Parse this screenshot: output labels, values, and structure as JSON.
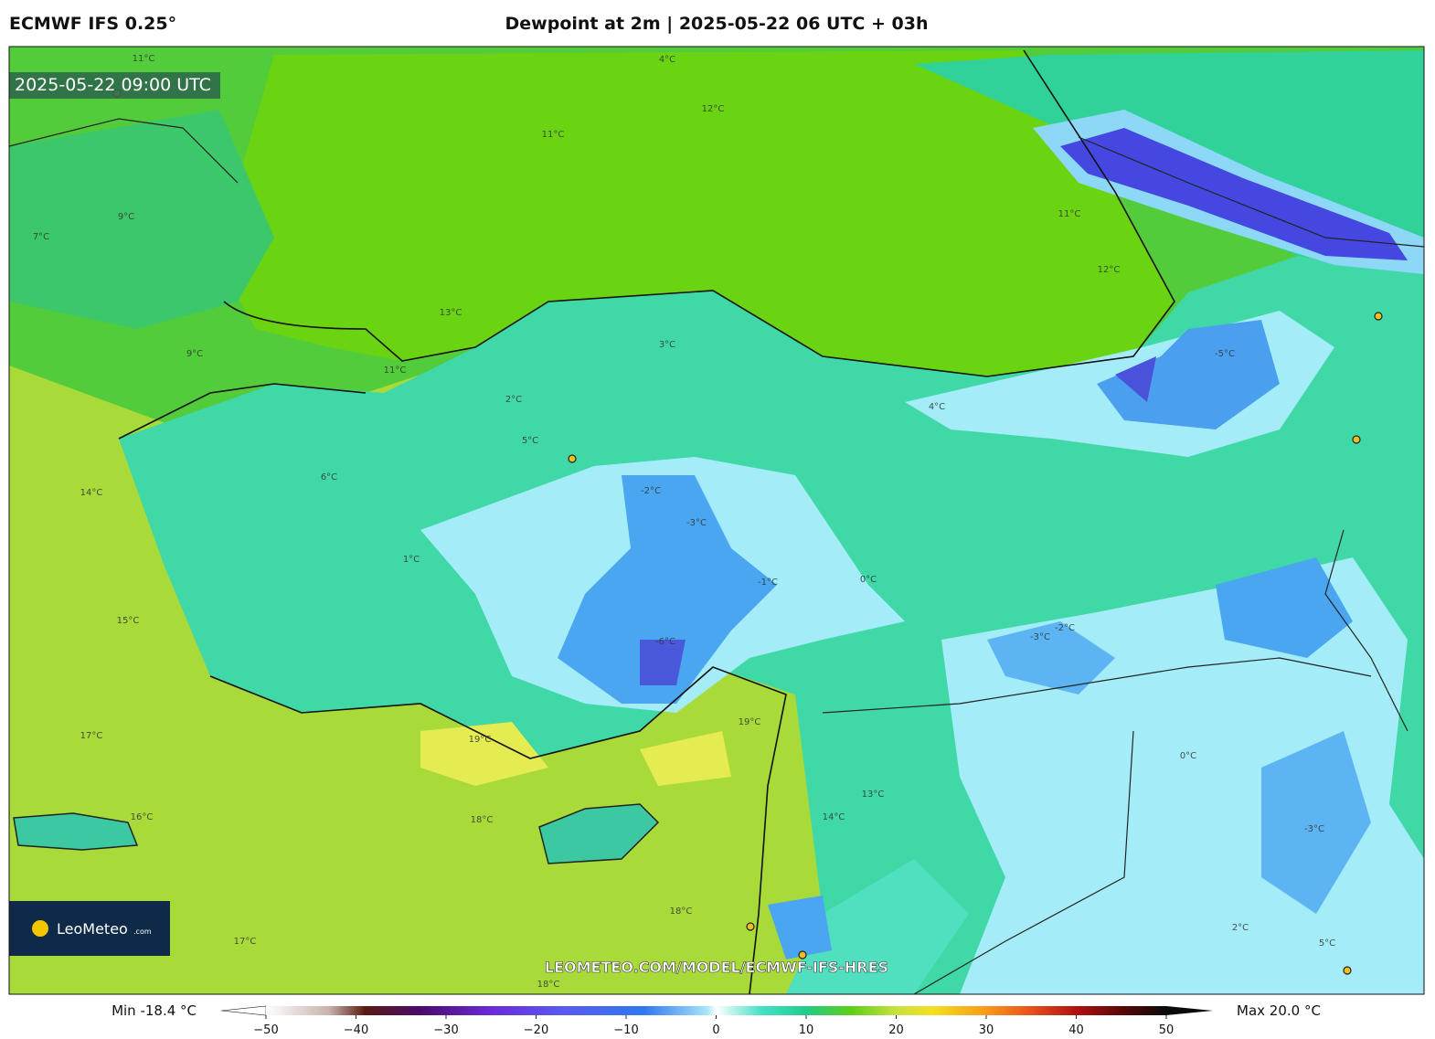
{
  "header": {
    "model": "ECMWF IFS 0.25°",
    "title": "Dewpoint at 2m | 2025-05-22 06 UTC + 03h"
  },
  "map": {
    "valid_time": "2025-05-22 09:00 UTC",
    "watermark": "LEOMETEO.COM/MODEL/ECMWF-IFS-HRES",
    "logo": {
      "name": "LeoMeteo",
      "suffix": ".com"
    },
    "contour_labels": [
      "11°C",
      "12°C",
      "11°C",
      "11°C",
      "12°C",
      "13°C",
      "11°C",
      "9°C",
      "9°C",
      "7°C",
      "4°C",
      "3°C",
      "2°C",
      "5°C",
      "6°C",
      "-2°C",
      "-3°C",
      "-1°C",
      "0°C",
      "1°C",
      "-5°C",
      "4°C",
      "-3°C",
      "-2°C",
      "-6°C",
      "19°C",
      "19°C",
      "18°C",
      "18°C",
      "17°C",
      "16°C",
      "15°C",
      "14°C",
      "17°C",
      "13°C",
      "14°C",
      "5°C",
      "0°C",
      "-3°C",
      "2°C",
      "18°C"
    ]
  },
  "colorbar": {
    "min_label": "Min -18.4 °C",
    "max_label": "Max 20.0 °C",
    "range": [
      -50,
      50
    ],
    "ticks": [
      {
        "value": -50,
        "label": "−50"
      },
      {
        "value": -40,
        "label": "−40"
      },
      {
        "value": -30,
        "label": "−30"
      },
      {
        "value": -20,
        "label": "−20"
      },
      {
        "value": -10,
        "label": "−10"
      },
      0,
      10,
      20,
      30,
      40,
      50
    ]
  }
}
